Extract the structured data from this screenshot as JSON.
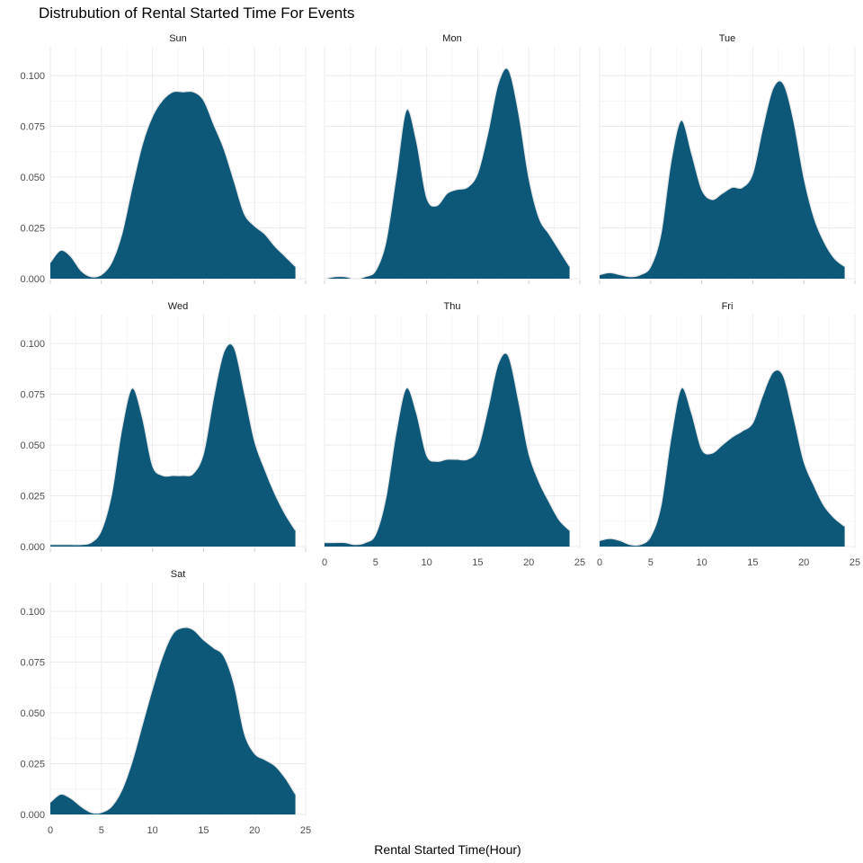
{
  "chart_data": {
    "type": "area",
    "title": "Distrubution of Rental Started Time For Events",
    "xlabel": "Rental Started Time(Hour)",
    "ylabel": "",
    "xlim": [
      0,
      25
    ],
    "ylim": [
      0,
      0.108
    ],
    "x_ticks": [
      0,
      5,
      10,
      15,
      20,
      25
    ],
    "y_ticks": [
      "0.000",
      "0.025",
      "0.050",
      "0.075",
      "0.100"
    ],
    "grid": true,
    "legend": "none",
    "fill_color": "#0d5878",
    "outline_color": "#e8e8e8",
    "x": [
      0,
      1,
      2,
      3,
      4,
      5,
      6,
      7,
      8,
      9,
      10,
      11,
      12,
      13,
      14,
      15,
      16,
      17,
      18,
      19,
      20,
      21,
      22,
      23,
      24
    ],
    "facets": [
      {
        "name": "Sun",
        "values": [
          0.008,
          0.014,
          0.011,
          0.004,
          0.001,
          0.002,
          0.008,
          0.022,
          0.045,
          0.066,
          0.08,
          0.088,
          0.092,
          0.092,
          0.092,
          0.088,
          0.076,
          0.064,
          0.048,
          0.032,
          0.026,
          0.022,
          0.016,
          0.011,
          0.006
        ]
      },
      {
        "name": "Mon",
        "values": [
          0.0,
          0.001,
          0.001,
          0.0,
          0.001,
          0.004,
          0.018,
          0.05,
          0.083,
          0.068,
          0.04,
          0.036,
          0.042,
          0.044,
          0.045,
          0.052,
          0.072,
          0.096,
          0.103,
          0.082,
          0.05,
          0.03,
          0.022,
          0.014,
          0.006
        ]
      },
      {
        "name": "Tue",
        "values": [
          0.002,
          0.003,
          0.002,
          0.001,
          0.002,
          0.006,
          0.022,
          0.058,
          0.078,
          0.062,
          0.044,
          0.039,
          0.042,
          0.045,
          0.045,
          0.052,
          0.075,
          0.094,
          0.096,
          0.078,
          0.05,
          0.03,
          0.018,
          0.01,
          0.006
        ]
      },
      {
        "name": "Wed",
        "values": [
          0.001,
          0.001,
          0.001,
          0.001,
          0.002,
          0.008,
          0.026,
          0.058,
          0.078,
          0.064,
          0.04,
          0.035,
          0.035,
          0.035,
          0.036,
          0.046,
          0.074,
          0.096,
          0.098,
          0.076,
          0.052,
          0.038,
          0.026,
          0.016,
          0.008
        ]
      },
      {
        "name": "Thu",
        "values": [
          0.002,
          0.002,
          0.002,
          0.001,
          0.002,
          0.006,
          0.024,
          0.056,
          0.078,
          0.066,
          0.045,
          0.042,
          0.043,
          0.043,
          0.043,
          0.048,
          0.068,
          0.09,
          0.094,
          0.072,
          0.046,
          0.032,
          0.022,
          0.013,
          0.008
        ]
      },
      {
        "name": "Fri",
        "values": [
          0.003,
          0.004,
          0.003,
          0.001,
          0.001,
          0.005,
          0.02,
          0.054,
          0.078,
          0.066,
          0.048,
          0.046,
          0.05,
          0.054,
          0.057,
          0.061,
          0.075,
          0.086,
          0.084,
          0.064,
          0.042,
          0.03,
          0.02,
          0.014,
          0.01
        ]
      },
      {
        "name": "Sat",
        "values": [
          0.006,
          0.01,
          0.008,
          0.004,
          0.001,
          0.001,
          0.004,
          0.012,
          0.026,
          0.044,
          0.062,
          0.078,
          0.089,
          0.092,
          0.091,
          0.086,
          0.082,
          0.078,
          0.064,
          0.04,
          0.03,
          0.027,
          0.024,
          0.018,
          0.01
        ]
      }
    ]
  }
}
